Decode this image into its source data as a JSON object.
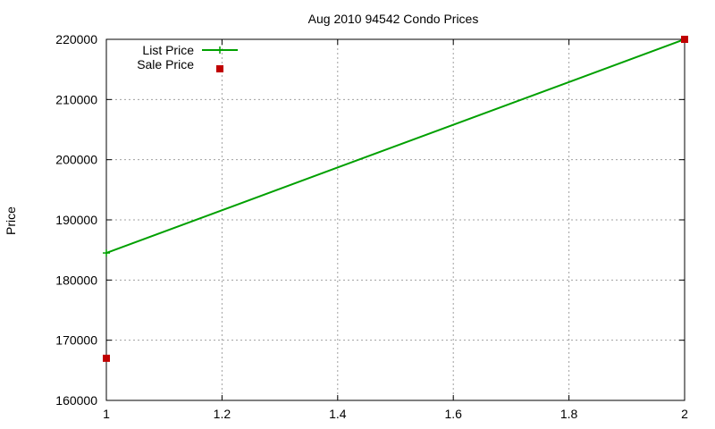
{
  "chart_data": {
    "type": "line",
    "title": "Aug 2010 94542 Condo Prices",
    "xlabel": "",
    "ylabel": "Price",
    "xlim": [
      1,
      2
    ],
    "ylim": [
      160000,
      220000
    ],
    "x_ticks": [
      1,
      1.2,
      1.4,
      1.6,
      1.8,
      2
    ],
    "x_tick_labels": [
      "1",
      "1.2",
      "1.4",
      "1.6",
      "1.8",
      "2"
    ],
    "y_ticks": [
      160000,
      170000,
      180000,
      190000,
      200000,
      210000,
      220000
    ],
    "y_tick_labels": [
      "160000",
      "170000",
      "180000",
      "190000",
      "200000",
      "210000",
      "220000"
    ],
    "grid": true,
    "legend_position": "top-left",
    "series": [
      {
        "name": "List Price",
        "kind": "line",
        "marker": "plus",
        "color": "#00a000",
        "points": [
          {
            "x": 1,
            "y": 184500
          },
          {
            "x": 2,
            "y": 220000
          }
        ]
      },
      {
        "name": "Sale Price",
        "kind": "points",
        "marker": "square",
        "color": "#c00000",
        "points": [
          {
            "x": 1,
            "y": 167000
          },
          {
            "x": 2,
            "y": 220000
          }
        ]
      }
    ]
  }
}
